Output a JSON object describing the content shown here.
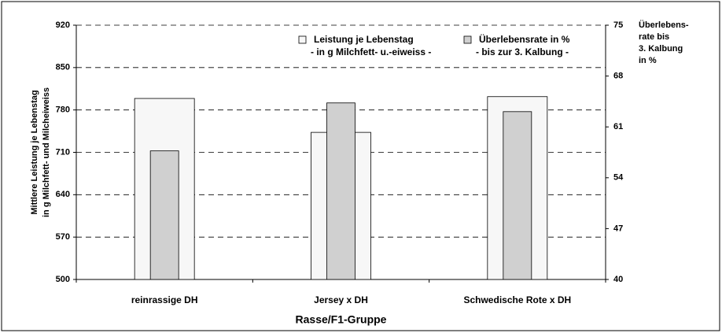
{
  "chart_data": {
    "type": "bar",
    "ylabel": [
      "Mittlere Leistung je Lebenstag",
      "in g Milchfett- und Milcheiweiss"
    ],
    "y2label": [
      "Überlebens-",
      "rate bis",
      "3. Kalbung",
      "in %"
    ],
    "xlabel": "Rasse/F1-Gruppe",
    "categories": [
      "reinrassige DH",
      "Jersey x DH",
      "Schwedische Rote x DH"
    ],
    "series": [
      {
        "name": "Leistung je Lebenstag",
        "subtitle": "- in g Milchfett- u.-eiweiss -",
        "color": "#f7f7f7",
        "values": [
          799,
          743,
          802
        ]
      },
      {
        "name": "Überlebensrate in %",
        "subtitle": "- bis zur 3. Kalbung -",
        "color": "#d0d0d0",
        "axis": "y2",
        "values": [
          57.7,
          64.3,
          63.1
        ]
      }
    ],
    "ylim": [
      500,
      920
    ],
    "yticks": [
      500,
      570,
      640,
      710,
      780,
      850,
      920
    ],
    "y2lim": [
      40,
      75
    ],
    "y2ticks": [
      40,
      47,
      54,
      61,
      68,
      75
    ],
    "grid": true,
    "legend": "top-right"
  }
}
